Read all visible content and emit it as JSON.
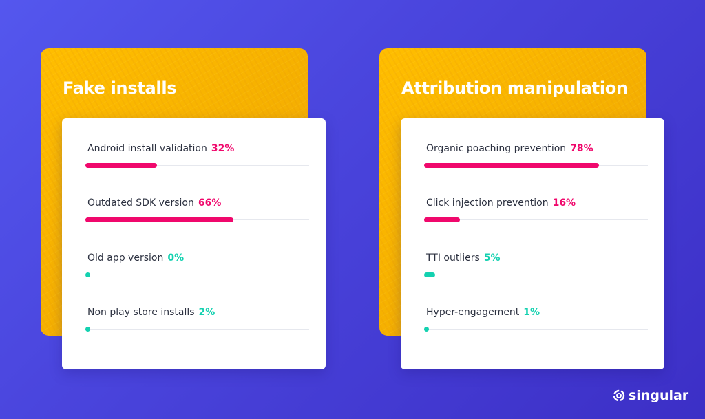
{
  "colors": {
    "high": "#f0086c",
    "low": "#14d1b0",
    "background": "#4a45dd",
    "card_accent": "#ffbe00"
  },
  "panels": [
    {
      "title": "Fake installs",
      "metrics": [
        {
          "label": "Android install validation",
          "value": "32%",
          "percent": 32,
          "level": "high"
        },
        {
          "label": "Outdated SDK version",
          "value": "66%",
          "percent": 66,
          "level": "high"
        },
        {
          "label": "Old app version",
          "value": "0%",
          "percent": 0,
          "level": "low"
        },
        {
          "label": "Non play store installs",
          "value": "2%",
          "percent": 2,
          "level": "low"
        }
      ]
    },
    {
      "title": "Attribution manipulation",
      "metrics": [
        {
          "label": "Organic poaching prevention",
          "value": "78%",
          "percent": 78,
          "level": "high"
        },
        {
          "label": "Click injection prevention",
          "value": "16%",
          "percent": 16,
          "level": "high"
        },
        {
          "label": "TTI outliers",
          "value": "5%",
          "percent": 5,
          "level": "low"
        },
        {
          "label": "Hyper-engagement",
          "value": "1%",
          "percent": 1,
          "level": "low"
        }
      ]
    }
  ],
  "brand": {
    "name": "singular",
    "icon": "singular-swirl-icon"
  }
}
